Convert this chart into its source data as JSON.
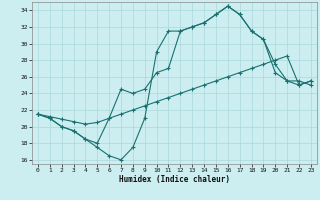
{
  "xlabel": "Humidex (Indice chaleur)",
  "bg_color": "#cceef0",
  "grid_color": "#aad8dc",
  "line_color": "#1a7070",
  "xlim": [
    -0.5,
    23.5
  ],
  "ylim": [
    15.5,
    35.0
  ],
  "xticks": [
    0,
    1,
    2,
    3,
    4,
    5,
    6,
    7,
    8,
    9,
    10,
    11,
    12,
    13,
    14,
    15,
    16,
    17,
    18,
    19,
    20,
    21,
    22,
    23
  ],
  "yticks": [
    16,
    18,
    20,
    22,
    24,
    26,
    28,
    30,
    32,
    34
  ],
  "line1_x": [
    0,
    1,
    2,
    3,
    4,
    5,
    6,
    7,
    8,
    9,
    10,
    11,
    12,
    13,
    14,
    15,
    16,
    17,
    18,
    19,
    20,
    21,
    22,
    23
  ],
  "line1_y": [
    21.5,
    21.0,
    20.0,
    19.5,
    18.5,
    17.5,
    16.5,
    16.0,
    17.5,
    21.0,
    29.0,
    31.5,
    31.5,
    32.0,
    32.5,
    33.5,
    34.5,
    33.5,
    31.5,
    30.5,
    27.5,
    25.5,
    25.0,
    25.5
  ],
  "line2_x": [
    0,
    1,
    2,
    3,
    4,
    5,
    6,
    7,
    8,
    9,
    10,
    11,
    12,
    13,
    14,
    15,
    16,
    17,
    18,
    19,
    20,
    21,
    22,
    23
  ],
  "line2_y": [
    21.5,
    21.2,
    20.9,
    20.6,
    20.3,
    20.5,
    21.0,
    21.5,
    22.0,
    22.5,
    23.0,
    23.5,
    24.0,
    24.5,
    25.0,
    25.5,
    26.0,
    26.5,
    27.0,
    27.5,
    28.0,
    28.5,
    25.0,
    25.5
  ],
  "line3_x": [
    0,
    1,
    2,
    3,
    4,
    5,
    6,
    7,
    8,
    9,
    10,
    11,
    12,
    13,
    14,
    15,
    16,
    17,
    18,
    19,
    20,
    21,
    22,
    23
  ],
  "line3_y": [
    21.5,
    21.0,
    20.0,
    19.5,
    18.5,
    18.0,
    21.0,
    24.5,
    24.0,
    24.5,
    26.5,
    27.0,
    31.5,
    32.0,
    32.5,
    33.5,
    34.5,
    33.5,
    31.5,
    30.5,
    26.5,
    25.5,
    25.5,
    25.0
  ]
}
